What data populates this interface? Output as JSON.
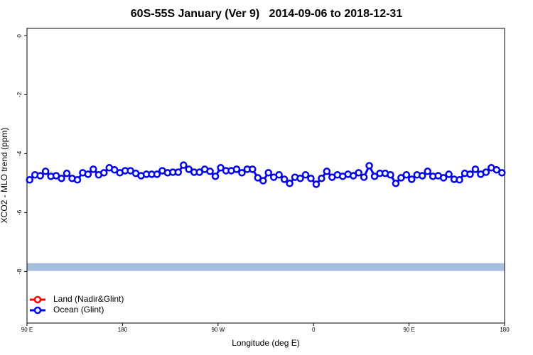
{
  "chart_data": {
    "type": "line",
    "title": "60S-55S January (Ver 9)   2014-09-06 to 2018-12-31",
    "x_label": "Longitude (deg E)",
    "y_label": "XCO2 - MLO trend (ppm)",
    "x": [
      92.5,
      97.5,
      102.5,
      107.5,
      112.5,
      117.5,
      122.5,
      127.5,
      132.5,
      137.5,
      142.5,
      147.5,
      152.5,
      157.5,
      162.5,
      167.5,
      172.5,
      177.5,
      182.5,
      187.5,
      192.5,
      197.5,
      202.5,
      207.5,
      212.5,
      217.5,
      222.5,
      227.5,
      232.5,
      237.5,
      242.5,
      247.5,
      252.5,
      257.5,
      262.5,
      267.5,
      272.5,
      277.5,
      282.5,
      287.5,
      292.5,
      297.5,
      302.5,
      307.5,
      312.5,
      317.5,
      322.5,
      327.5,
      332.5,
      337.5,
      342.5,
      347.5,
      352.5,
      357.5,
      362.5,
      367.5,
      372.5,
      377.5,
      382.5,
      387.5,
      392.5,
      397.5,
      402.5,
      407.5,
      412.5,
      417.5,
      422.5,
      427.5,
      432.5,
      437.5,
      442.5,
      447.5,
      452.5,
      457.5,
      462.5,
      467.5,
      472.5,
      477.5,
      482.5,
      487.5,
      492.5,
      497.5,
      502.5,
      507.5,
      512.5,
      517.5,
      522.5,
      527.5,
      532.5,
      537.5
    ],
    "series": [
      {
        "name": "Land (Nadir&Glint)",
        "color": "#ff0000",
        "values": [
          null,
          null,
          null,
          null,
          null,
          null,
          null,
          null,
          null,
          null,
          null,
          null,
          null,
          null,
          null,
          null,
          null,
          null,
          null,
          null,
          null,
          null,
          null,
          null,
          null,
          null,
          null,
          null,
          null,
          null,
          null,
          null,
          null,
          null,
          null,
          null,
          null,
          null,
          null,
          null,
          null,
          null,
          null,
          null,
          null,
          null,
          null,
          null,
          null,
          null,
          null,
          null,
          null,
          null,
          null,
          null,
          null,
          null,
          null,
          null,
          null,
          null,
          null,
          null,
          null,
          null,
          null,
          null,
          null,
          null,
          null,
          null,
          null,
          null,
          null,
          null,
          null,
          null,
          null,
          null,
          null,
          null,
          null,
          null,
          null,
          null,
          null,
          null,
          null,
          null
        ]
      },
      {
        "name": "Ocean (Glint)",
        "color": "#0000ee",
        "values": [
          -4.89,
          -4.72,
          -4.75,
          -4.6,
          -4.77,
          -4.75,
          -4.84,
          -4.67,
          -4.84,
          -4.89,
          -4.65,
          -4.7,
          -4.53,
          -4.72,
          -4.65,
          -4.48,
          -4.55,
          -4.65,
          -4.58,
          -4.58,
          -4.67,
          -4.75,
          -4.7,
          -4.7,
          -4.7,
          -4.58,
          -4.65,
          -4.63,
          -4.63,
          -4.39,
          -4.53,
          -4.63,
          -4.63,
          -4.53,
          -4.6,
          -4.77,
          -4.48,
          -4.58,
          -4.58,
          -4.53,
          -4.65,
          -4.53,
          -4.53,
          -4.82,
          -4.92,
          -4.65,
          -4.8,
          -4.72,
          -4.87,
          -5.01,
          -4.8,
          -4.84,
          -4.72,
          -4.84,
          -5.04,
          -4.84,
          -4.6,
          -4.8,
          -4.72,
          -4.77,
          -4.7,
          -4.75,
          -4.65,
          -4.8,
          -4.41,
          -4.77,
          -4.67,
          -4.67,
          -4.72,
          -5.01,
          -4.82,
          -4.72,
          -4.87,
          -4.72,
          -4.75,
          -4.6,
          -4.77,
          -4.75,
          -4.82,
          -4.7,
          -4.87,
          -4.89,
          -4.67,
          -4.7,
          -4.53,
          -4.7,
          -4.63,
          -4.48,
          -4.55,
          -4.65
        ]
      }
    ],
    "hline": {
      "value": -7.85,
      "color": "#a8bedf"
    },
    "xlim": [
      90,
      540
    ],
    "xticks": [
      {
        "value": 90,
        "label": "90 E"
      },
      180,
      {
        "value": 270,
        "label": "90 W"
      },
      {
        "value": 360,
        "label": "0"
      },
      {
        "value": 450,
        "label": "90 E"
      },
      {
        "value": 540,
        "label": "180"
      }
    ],
    "ylim": [
      -9.75,
      0.25
    ],
    "yticks": [
      0,
      -2,
      -4,
      -6,
      -8
    ],
    "legend": "bottom-left"
  }
}
